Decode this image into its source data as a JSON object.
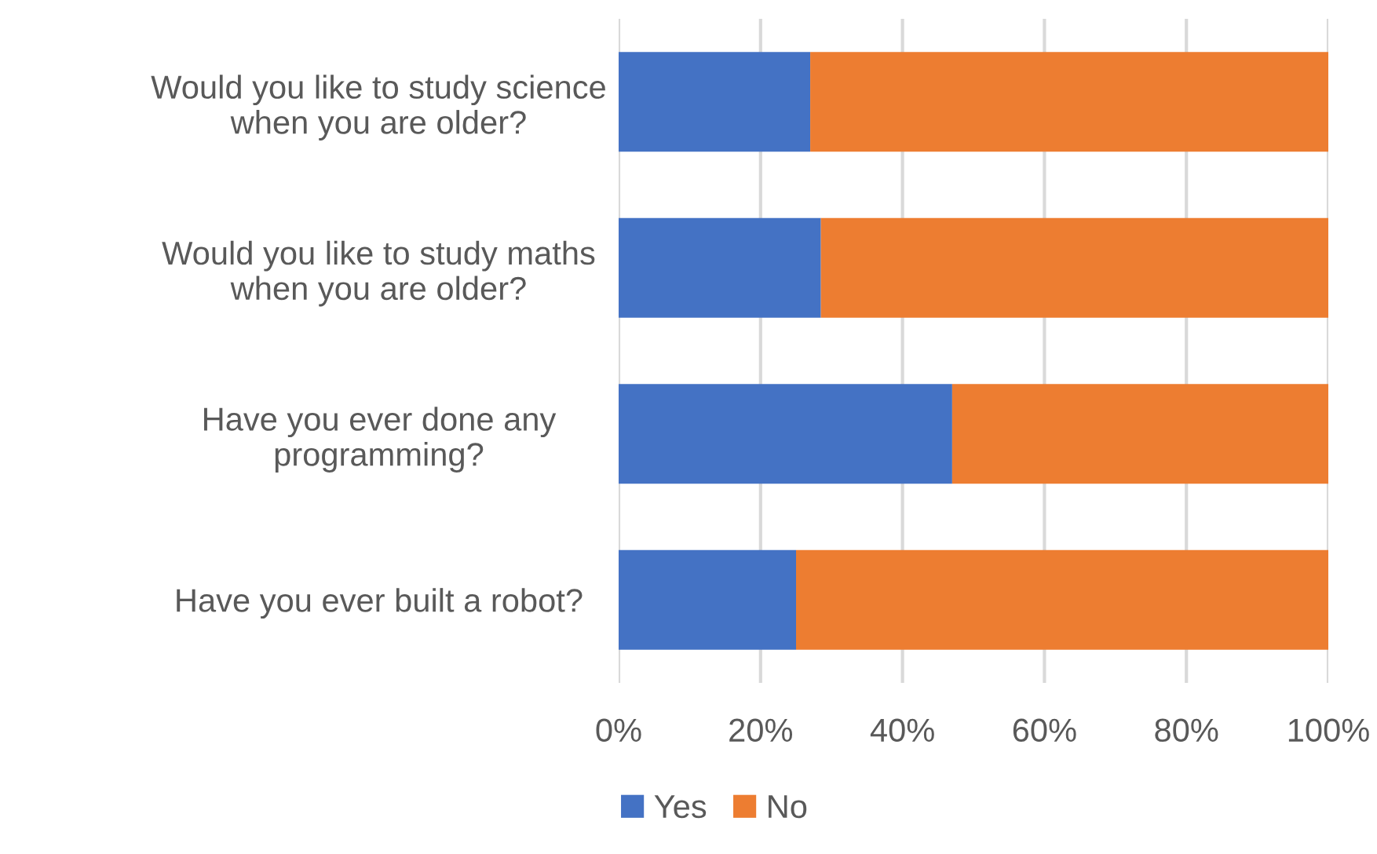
{
  "chart_data": {
    "type": "bar",
    "orientation": "horizontal",
    "stacked": true,
    "categories": [
      "Would you like to study science\nwhen you are older?",
      "Would you like to study maths\nwhen you are older?",
      "Have you ever done any\nprogramming?",
      "Have you ever built a robot?"
    ],
    "series": [
      {
        "name": "Yes",
        "color": "#4472c4",
        "values": [
          27,
          28.5,
          47,
          25
        ]
      },
      {
        "name": "No",
        "color": "#ed7d31",
        "values": [
          73,
          71.5,
          53,
          75
        ]
      }
    ],
    "xlim": [
      0,
      100
    ],
    "xticks": [
      {
        "value": 0,
        "label": "0%"
      },
      {
        "value": 20,
        "label": "20%"
      },
      {
        "value": 40,
        "label": "40%"
      },
      {
        "value": 60,
        "label": "60%"
      },
      {
        "value": 80,
        "label": "80%"
      },
      {
        "value": 100,
        "label": "100%"
      }
    ],
    "grid": "x",
    "legend": "bottom"
  }
}
